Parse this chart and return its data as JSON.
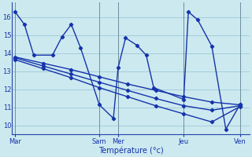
{
  "background_color": "#cce9f0",
  "grid_color": "#9fc8d5",
  "line_color": "#1533aa",
  "xlabel": "Température (°c)",
  "ylim": [
    9.5,
    16.8
  ],
  "yticks": [
    10,
    11,
    12,
    13,
    14,
    15,
    16
  ],
  "xtick_labels": [
    "Mar",
    "Sam",
    "Mer",
    "Jeu",
    "Ven"
  ],
  "xtick_positions": [
    0,
    9,
    11,
    18,
    24
  ],
  "xlim": [
    -0.3,
    25
  ],
  "line1_x": [
    0,
    1,
    2,
    4,
    5,
    6,
    7,
    9,
    10.5,
    11,
    11.8,
    13,
    14,
    14.8,
    18,
    18.5,
    19.5,
    21,
    22.5,
    24
  ],
  "line1_y": [
    16.3,
    15.6,
    13.9,
    13.9,
    14.9,
    15.6,
    14.3,
    11.15,
    10.4,
    13.2,
    14.85,
    14.45,
    13.9,
    12.1,
    11.45,
    16.3,
    15.85,
    14.4,
    9.8,
    11.15
  ],
  "line2_x": [
    0,
    3,
    6,
    9,
    12,
    15,
    18,
    21,
    24
  ],
  "line2_y": [
    13.8,
    13.45,
    13.1,
    12.7,
    12.3,
    11.95,
    11.6,
    11.3,
    11.15
  ],
  "line3_x": [
    0,
    3,
    6,
    9,
    12,
    15,
    18,
    21,
    24
  ],
  "line3_y": [
    13.75,
    13.3,
    12.85,
    12.4,
    11.95,
    11.5,
    11.1,
    10.85,
    11.1
  ],
  "line4_x": [
    0,
    3,
    6,
    9,
    12,
    15,
    18,
    21,
    24
  ],
  "line4_y": [
    13.65,
    13.15,
    12.65,
    12.1,
    11.6,
    11.1,
    10.65,
    10.2,
    11.05
  ]
}
